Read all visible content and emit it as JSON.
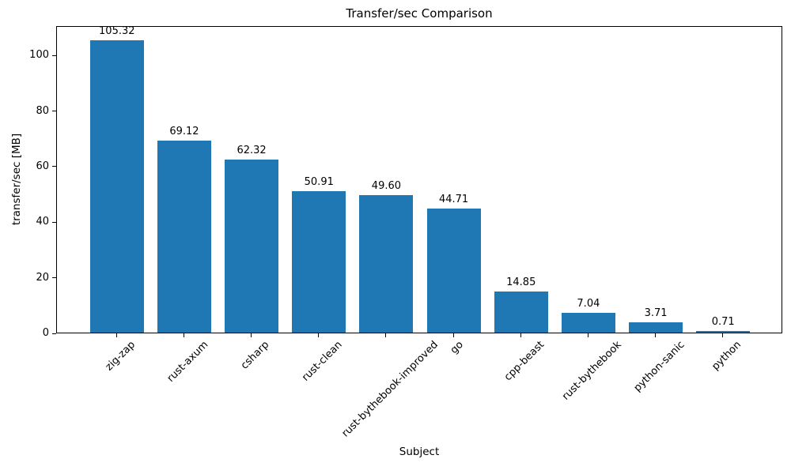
{
  "chart_data": {
    "type": "bar",
    "title": "Transfer/sec Comparison",
    "xlabel": "Subject",
    "ylabel": "transfer/sec [MB]",
    "categories": [
      "zig-zap",
      "rust-axum",
      "csharp",
      "rust-clean",
      "rust-bythebook-improved",
      "go",
      "cpp-beast",
      "rust-bythebook",
      "python-sanic",
      "python"
    ],
    "values": [
      105.32,
      69.12,
      62.32,
      50.91,
      49.6,
      44.71,
      14.85,
      7.04,
      3.71,
      0.71
    ],
    "value_labels": [
      "105.32",
      "69.12",
      "62.32",
      "50.91",
      "49.60",
      "44.71",
      "14.85",
      "7.04",
      "3.71",
      "0.71"
    ],
    "yticks": [
      0,
      20,
      40,
      60,
      80,
      100
    ],
    "ytick_labels": [
      "0",
      "20",
      "40",
      "60",
      "80",
      "100"
    ],
    "ylim": [
      0,
      110.6
    ],
    "xlim": [
      -0.89,
      9.89
    ],
    "bar_color": "#1f77b4",
    "text_color": "#000000",
    "grid": false,
    "legend_position": "none",
    "x_tick_rotation_deg": 45
  }
}
